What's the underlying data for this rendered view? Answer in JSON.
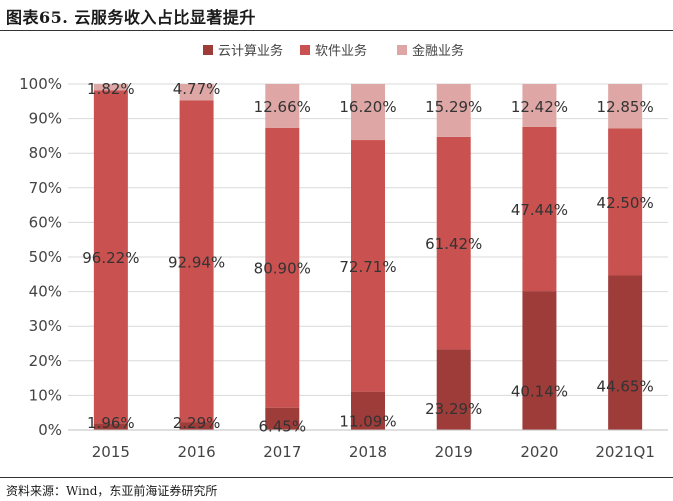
{
  "header": {
    "title": "图表65.  云服务收入占比显著提升"
  },
  "footer": {
    "source": "资料来源：Wind，东亚前海证券研究所"
  },
  "colors": {
    "cloud": "#9e3c3a",
    "software": "#c9514f",
    "finance": "#dea7a5",
    "grid": "#d9d9d9",
    "axis": "#bfbfbf"
  },
  "chart_data": {
    "type": "bar",
    "stacked": true,
    "categories": [
      "2015",
      "2016",
      "2017",
      "2018",
      "2019",
      "2020",
      "2021Q1"
    ],
    "series": [
      {
        "name": "云计算业务",
        "values": [
          1.96,
          2.29,
          6.45,
          11.09,
          23.29,
          40.14,
          44.65
        ],
        "labels": [
          "1.96%",
          "2.29%",
          "6.45%",
          "11.09%",
          "23.29%",
          "40.14%",
          "44.65%"
        ]
      },
      {
        "name": "软件业务",
        "values": [
          96.22,
          92.94,
          80.9,
          72.71,
          61.42,
          47.44,
          42.5
        ],
        "labels": [
          "96.22%",
          "92.94%",
          "80.90%",
          "72.71%",
          "61.42%",
          "47.44%",
          "42.50%"
        ]
      },
      {
        "name": "金融业务",
        "values": [
          1.82,
          4.77,
          12.66,
          16.2,
          15.29,
          12.42,
          12.85
        ],
        "labels": [
          "1.82%",
          "4.77%",
          "12.66%",
          "16.20%",
          "15.29%",
          "12.42%",
          "12.85%"
        ]
      }
    ],
    "ylim": [
      0,
      100
    ],
    "yticks": [
      "0%",
      "10%",
      "20%",
      "30%",
      "40%",
      "50%",
      "60%",
      "70%",
      "80%",
      "90%",
      "100%"
    ],
    "grid": true,
    "legend_position": "top"
  }
}
